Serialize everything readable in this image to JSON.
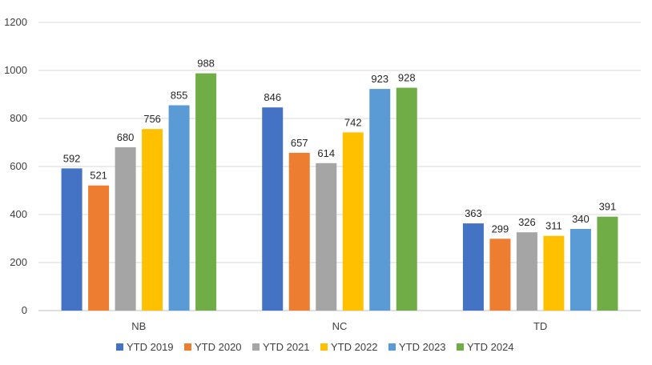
{
  "chart_data": {
    "type": "bar",
    "title": "",
    "xlabel": "",
    "ylabel": "",
    "ylim": [
      0,
      1200
    ],
    "yticks": [
      0,
      200,
      400,
      600,
      800,
      1000,
      1200
    ],
    "grid": true,
    "legend_position": "bottom",
    "categories": [
      "NB",
      "NC",
      "TD"
    ],
    "series": [
      {
        "name": "YTD 2019",
        "color": "#4472C4",
        "values": [
          592,
          846,
          363
        ]
      },
      {
        "name": "YTD 2020",
        "color": "#ED7D31",
        "values": [
          521,
          657,
          299
        ]
      },
      {
        "name": "YTD 2021",
        "color": "#A5A5A5",
        "values": [
          680,
          614,
          326
        ]
      },
      {
        "name": "YTD 2022",
        "color": "#FFC000",
        "values": [
          756,
          742,
          311
        ]
      },
      {
        "name": "YTD 2023",
        "color": "#5B9BD5",
        "values": [
          855,
          923,
          340
        ]
      },
      {
        "name": "YTD 2024",
        "color": "#70AD47",
        "values": [
          988,
          928,
          391
        ]
      }
    ]
  }
}
